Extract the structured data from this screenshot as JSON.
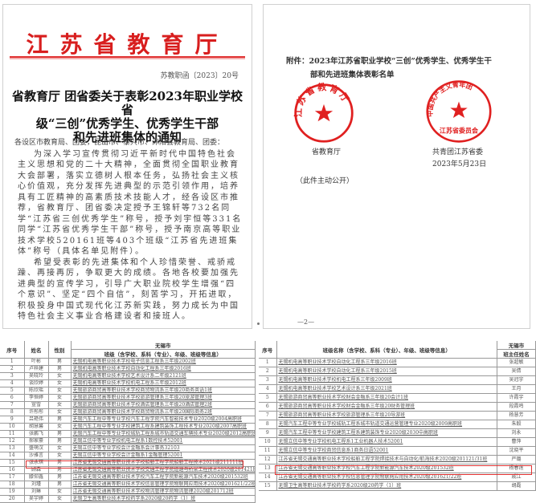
{
  "letter": {
    "org_title": "江苏省教育厅",
    "doc_number": "苏教职函〔2023〕20号",
    "heading": [
      "省教育厅 团省委关于表彰2023年职业学校省",
      "级“三创”优秀学生、优秀学生干部",
      "和先进班集体的通知"
    ],
    "salutation": "各设区市教育局、团委，昆山市、泰兴市、沭阳县教育局、团委：",
    "paragraphs": [
      "为深入学习宣传贯彻习近平新时代中国特色社会主义思想和党的二十大精神，全面贯彻全国职业教育大会部署，落实立德树人根本任务，弘扬社会主义核心价值观，充分发挥先进典型的示范引领作用，培养具有工匠精神的高素质技术技能人才，经各设区市推荐，省教育厅、团省委决定授予王锦轩等732名同学“江苏省三创优秀学生”称号，授予刘宇恒等331名同学“江苏省优秀学生干部”称号，授予南京高等职业技术学校520161班等403个班级“江苏省先进班集体”称号（具体名单见附件）。",
      "希望受表彰的先进集体和个人珍惜荣誉、戒骄戒躁、再接再厉，争取更大的成绩。各地各校要加强先进典型的宣传学习，引导广大职业院校学生增强“四个意识”、坚定“四个自信”，刻苦学习，开拓进取，积极投身中国式现代化江苏新实践，努力成长为中国特色社会主义事业合格建设者和接班人。"
    ]
  },
  "page2": {
    "attachment_line1": "附件：2023年江苏省职业学校“三创”优秀学生、优秀学生干",
    "attachment_line2": "部和先进班集体表彰名单",
    "signer1": "省教育厅",
    "signer2": "共青团江苏省委",
    "date": "2023年5月23日",
    "disclosure": "（此件主动公开）",
    "stamp1_text": "江苏省教育厅",
    "stamp2_text": "中国共产主义青年团江苏省委员会",
    "page_number": "—2—"
  },
  "students_table": {
    "headers": {
      "no": "序号",
      "name": "姓名",
      "gender": "性别",
      "city": "无锡市",
      "info": "班级（含学校、系科（专业）、年级、班级等信息）"
    },
    "rows": [
      [
        "1",
        "叶彬",
        "男",
        "无锡机电高等职业技术学校电子信息工程系三年级2002班"
      ],
      [
        "2",
        "卢梓建",
        "男",
        "无锡机电高等职业技术学校自动化工程系三年级2016班"
      ],
      [
        "3",
        "吴晓玲",
        "女",
        "无锡机电高等职业技术学校艺术设计系二年级2121班"
      ],
      [
        "4",
        "谈欣婷",
        "女",
        "无锡机电高等职业技术学校机电工程系三年级2012班"
      ],
      [
        "5",
        "陈欣瑶",
        "女",
        "无锡旅游商贸高等职业技术学校商贸物流系三年级20商务英语1班"
      ],
      [
        "6",
        "李恒婷",
        "女",
        "无锡旅游商贸高等职业技术学校旅游管理系三年级20旅游管理3班"
      ],
      [
        "7",
        "宣雪",
        "女",
        "无锡旅游商贸高等职业技术学校酒店管理系三年级20酒店管理2班"
      ],
      [
        "8",
        "许彤彤",
        "女",
        "无锡旅游商贸高等职业技术学校商贸物流系三年级20国际商务2班"
      ],
      [
        "9",
        "吕艳伟",
        "男",
        "无锡汽车工程中等专业学校汽车工程学院汽车智能技术专业2020级2004高职班"
      ],
      [
        "10",
        "胡慧馨",
        "女",
        "无锡汽车工程中等专业学校建筑工程系建筑装饰工程技术专业2020级2007高职班"
      ],
      [
        "11",
        "张鹏飞",
        "男",
        "无锡汽车工程中等专业学校城轨工程系城市轨道交通车辆技术专业2020级2012高职班"
      ],
      [
        "12",
        "郝家豪",
        "男",
        "无锡立信中等专业学校机电工程系1数控技术52001"
      ],
      [
        "13",
        "盛萌汉",
        "女",
        "无锡立信中等专业学校会计金融系会计事务32103"
      ],
      [
        "14",
        "沙雅言",
        "女",
        "无锡立信中等专业学校会计金融系1金融管理52001"
      ],
      [
        "15",
        "张永琪",
        "男",
        "江苏省无锡交通高等职业技术学校船舶工程学院船舶工程技术2021级211111班"
      ],
      [
        "16",
        "顾森",
        "男",
        "江苏省无锡交通高等职业技术学校交通工程学院道路与桥梁工程技术2020级201421班"
      ],
      [
        "17",
        "滕仰鑫",
        "男",
        "江苏省无锡交通高等职业技术学校汽车工程学院新能源汽车技术2020级201532班"
      ],
      [
        "18",
        "刘瑾",
        "男",
        "江苏省无锡交通高等职业技术学校信息管理学院物联网应用技术2020级201621/22班"
      ],
      [
        "19",
        "刘琳",
        "女",
        "江苏省无锡交通高等职业技术学校物流管理学院物流管理2020级201712班"
      ],
      [
        "20",
        "吴宇婷",
        "女",
        "无锡卫生高等职业技术学校药学系2020级20药学（1）班"
      ]
    ],
    "highlighted_row": "17"
  },
  "classes_table": {
    "headers": {
      "no": "序号",
      "info": "班级名称（含学校、系科（专业）、年级、班级等信息）",
      "city": "无锡市",
      "teacher": "班主任姓名"
    },
    "rows": [
      [
        "1",
        "无锡机电高等职业技术学校自动化工程系三年级2016班",
        "张超敏"
      ],
      [
        "2",
        "无锡机电高等职业技术学校自动化工程系三年级2015班",
        "吴倩"
      ],
      [
        "3",
        "无锡机电高等职业技术学校机电工程系三年级2009班",
        "吴冠宇"
      ],
      [
        "4",
        "无锡机电高等职业技术学校艺术设计系三年级2021班",
        "王月"
      ],
      [
        "5",
        "无锡旅游商贸高等职业技术学校财会金融系三年级20会计1班",
        "许霞宇"
      ],
      [
        "6",
        "无锡旅游商贸高等职业技术学校财会金融系三年级20财务管理班",
        "段霞鸣"
      ],
      [
        "7",
        "无锡旅游商贸高等职业技术学校旅游管理系三年级20导游班",
        "杨慧芳"
      ],
      [
        "8",
        "无锡汽车工程中等专业学校城轨工程系城市轨道交通运营管理专业2020级2009高职班",
        "朱毅"
      ],
      [
        "9",
        "无锡汽车工程中等专业学校建筑工程系建筑装饰专业2020级2030中高职班",
        "刘永"
      ],
      [
        "10",
        "无锡立信中等专业学校机电工程系1工业机器人技术52001",
        "曹萍"
      ],
      [
        "11",
        "无锡立信中等专业学校商贸信息系1商务日语52001",
        "沈晓平"
      ],
      [
        "12",
        "江苏省无锡交通高等职业技术学校船舶工程学院焊接技术与自动化/航海技术2020级201121/31班",
        "严璐"
      ],
      [
        "13",
        "江苏省无锡交通高等职业技术学校汽车工程学院新能源汽车技术2020级201532班",
        "杨春莲"
      ],
      [
        "14",
        "江苏省无锡交通高等职业技术学校信息管理学院物联网应用技术2020级201621/22班",
        "戚江"
      ],
      [
        "15",
        "无锡卫生高等职业技术学校药学系2020级20药学（1）班",
        "胡磊"
      ]
    ],
    "highlighted_row": "13"
  },
  "colors": {
    "official_red": "#d81e1e",
    "highlight_red": "#e03030"
  }
}
